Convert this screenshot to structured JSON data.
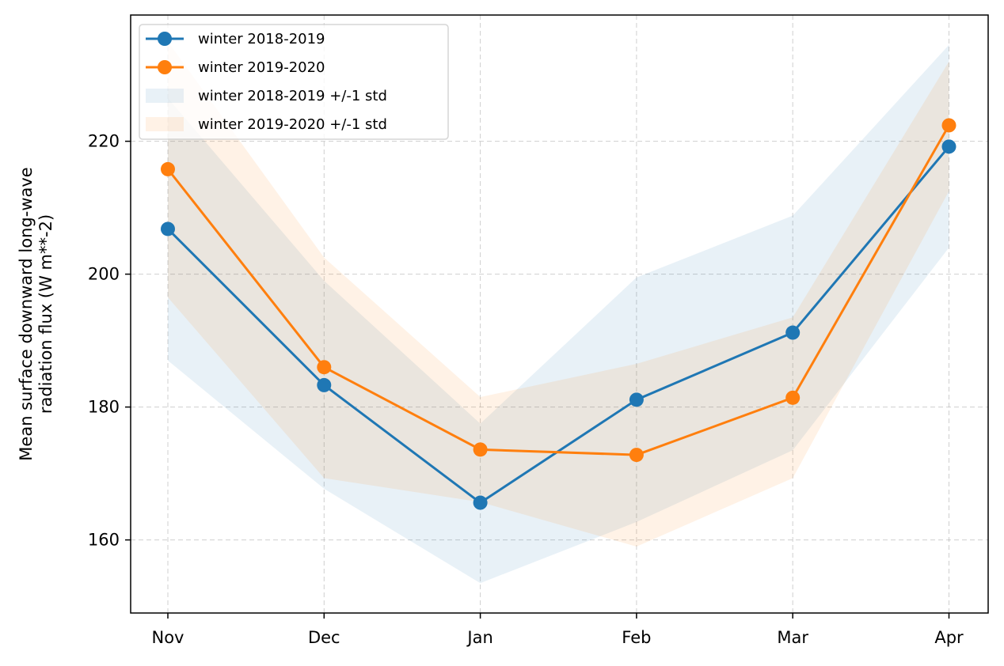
{
  "chart_data": {
    "type": "line",
    "categories": [
      "Nov",
      "Dec",
      "Jan",
      "Feb",
      "Mar",
      "Apr"
    ],
    "ylabel_lines": [
      "Mean surface downward long-wave",
      "radiation flux (W m**-2)"
    ],
    "xlabel": "",
    "ylim": [
      149,
      239
    ],
    "yticks": [
      160,
      180,
      200,
      220
    ],
    "grid": true,
    "legend_position": "top-left",
    "series": [
      {
        "name": "winter 2018-2019",
        "color": "#1f77b4",
        "values": [
          206.8,
          183.3,
          165.6,
          181.1,
          191.2,
          219.2
        ],
        "std_band": {
          "name": "winter 2018-2019 +/-1 std",
          "upper": [
            226.5,
            199.0,
            177.5,
            199.5,
            208.8,
            234.5
          ],
          "lower": [
            187.0,
            167.7,
            153.5,
            162.7,
            173.5,
            204.0
          ]
        }
      },
      {
        "name": "winter 2019-2020",
        "color": "#ff7f0e",
        "values": [
          215.8,
          186.0,
          173.6,
          172.8,
          181.4,
          222.4
        ],
        "std_band": {
          "name": "winter 2019-2020 +/-1 std",
          "upper": [
            235.0,
            202.5,
            181.5,
            186.5,
            193.5,
            232.0
          ],
          "lower": [
            196.5,
            169.3,
            165.7,
            159.0,
            169.3,
            212.5
          ]
        }
      }
    ]
  }
}
